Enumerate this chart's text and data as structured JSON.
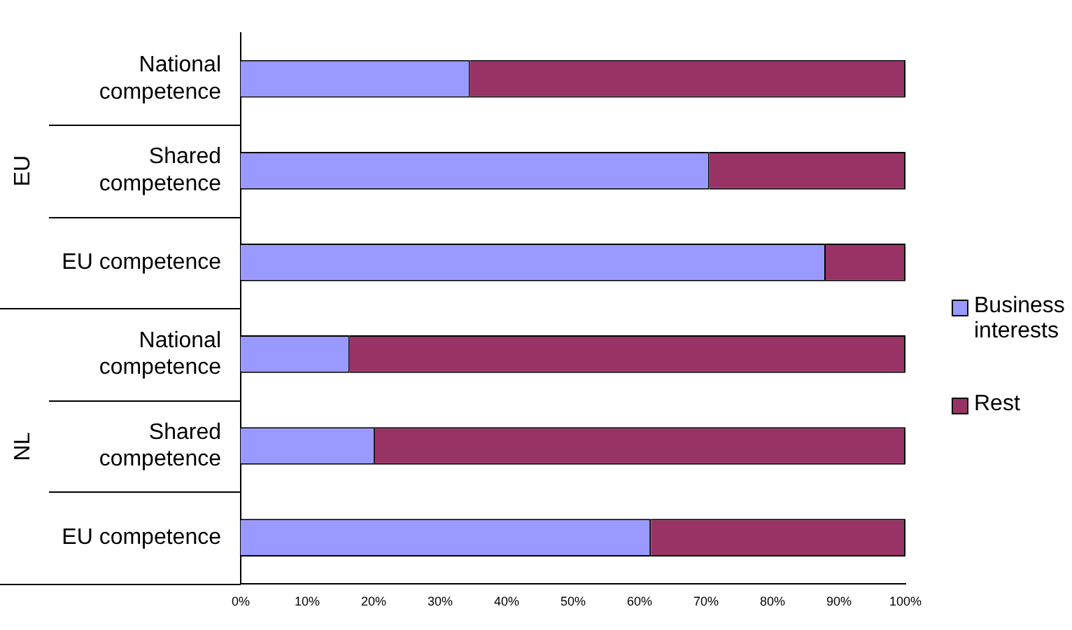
{
  "chart_data": {
    "type": "bar",
    "orientation": "horizontal",
    "stacked": true,
    "categories": [
      "National competence",
      "Shared competence",
      "EU competence",
      "National competence",
      "Shared competence",
      "EU competence"
    ],
    "series": [
      {
        "name": "Business interests",
        "color": "#9999ff",
        "values": [
          34.5,
          70.5,
          88,
          16.4,
          20.2,
          61.7
        ]
      },
      {
        "name": "Rest",
        "color": "#993366",
        "values": [
          65.5,
          29.5,
          12,
          83.6,
          79.8,
          38.3
        ]
      }
    ],
    "xlim": [
      0,
      100
    ],
    "xticks": [
      {
        "value": 0,
        "label": "0%"
      },
      {
        "value": 10,
        "label": "10%"
      },
      {
        "value": 20,
        "label": "20%"
      },
      {
        "value": 30,
        "label": "30%"
      },
      {
        "value": 40,
        "label": "40%"
      },
      {
        "value": 50,
        "label": "50%"
      },
      {
        "value": 60,
        "label": "60%"
      },
      {
        "value": 70,
        "label": "70%"
      },
      {
        "value": 80,
        "label": "80%"
      },
      {
        "value": 90,
        "label": "90%"
      },
      {
        "value": 100,
        "label": "100%"
      }
    ],
    "annotations": [
      "EU",
      "NL"
    ],
    "legend": "right",
    "grid": false
  }
}
